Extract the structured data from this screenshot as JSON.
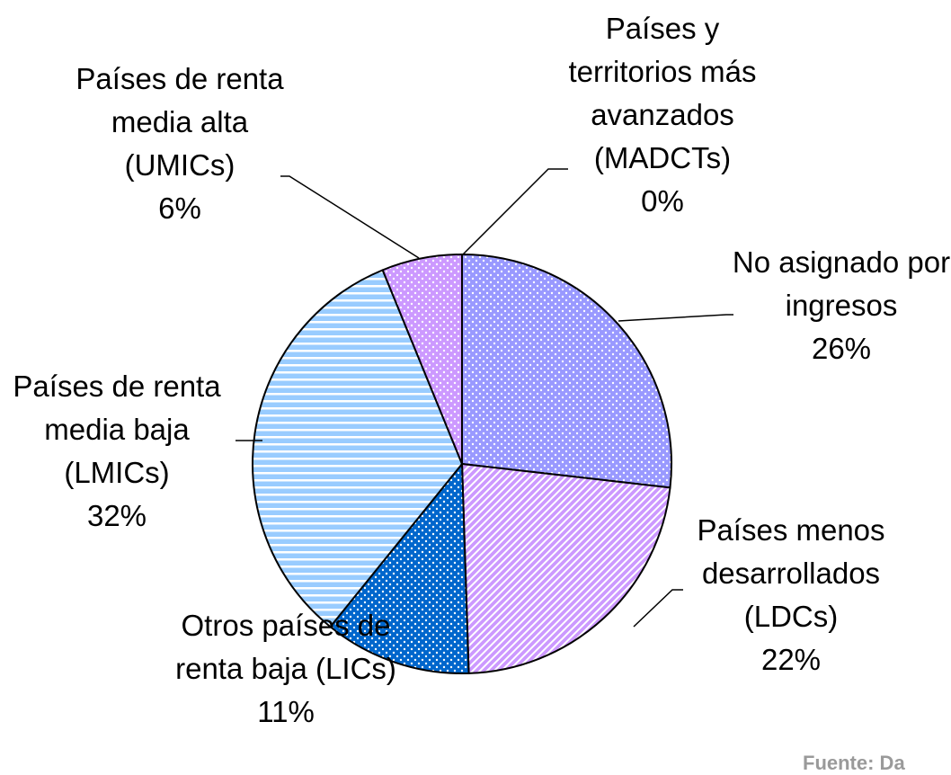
{
  "chart_data": {
    "type": "pie",
    "categories": [
      "Países y territorios más avanzados (MADCTs)",
      "No asignado por ingresos",
      "Países menos desarrollados (LDCs)",
      "Otros países de renta baja (LICs)",
      "Países de renta media baja (LMICs)",
      "Países de renta media alta (UMICs)"
    ],
    "values": [
      0,
      26,
      22,
      11,
      32,
      6
    ],
    "value_labels": [
      "0%",
      "26%",
      "22%",
      "11%",
      "32%",
      "6%"
    ],
    "colors": [
      "#9999ff",
      "#9999ff",
      "#cc99ff",
      "#0066cc",
      "#99ccff",
      "#cc99ff"
    ],
    "patterns": [
      "dots",
      "dots",
      "diagonal",
      "dots",
      "horizontal",
      "dots"
    ],
    "source": "Fuente: Da"
  }
}
